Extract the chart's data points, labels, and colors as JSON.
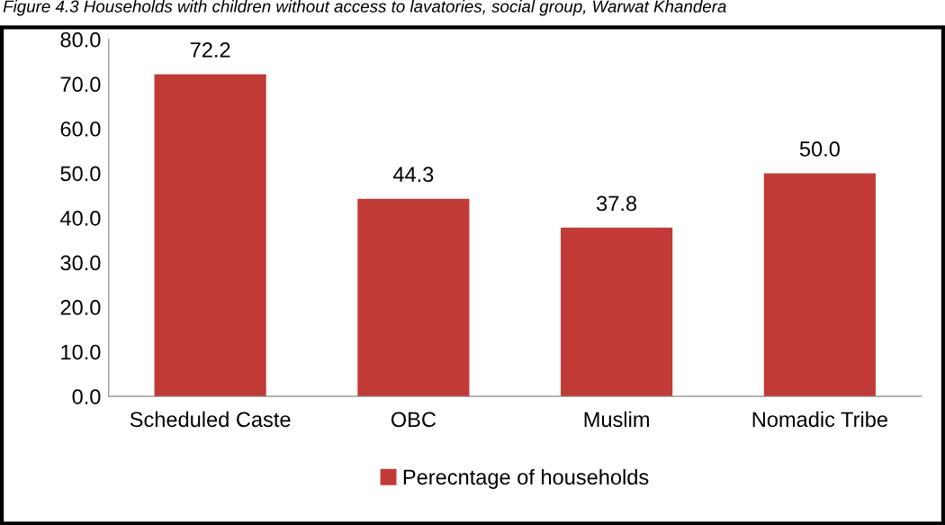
{
  "chart_data": {
    "type": "bar",
    "title": "Figure 4.3 Households with children without access to lavatories, social group, Warwat Khandera",
    "categories": [
      "Scheduled Caste",
      "OBC",
      "Muslim",
      "Nomadic Tribe"
    ],
    "series": [
      {
        "name": "Perecntage of households",
        "color": "#c23a36",
        "values": [
          72.2,
          44.3,
          37.8,
          50.0
        ]
      }
    ],
    "ylim": [
      0,
      80
    ],
    "yticks": [
      {
        "value": 0,
        "label": "0.0"
      },
      {
        "value": 10,
        "label": "10.0"
      },
      {
        "value": 20,
        "label": "20.0"
      },
      {
        "value": 30,
        "label": "30.0"
      },
      {
        "value": 40,
        "label": "40.0"
      },
      {
        "value": 50,
        "label": "50.0"
      },
      {
        "value": 60,
        "label": "60.0"
      },
      {
        "value": 70,
        "label": "70.0"
      },
      {
        "value": 80,
        "label": "80.0"
      }
    ],
    "value_labels": [
      "72.2",
      "44.3",
      "37.8",
      "50.0"
    ],
    "grid": false,
    "legend": "bottom"
  }
}
